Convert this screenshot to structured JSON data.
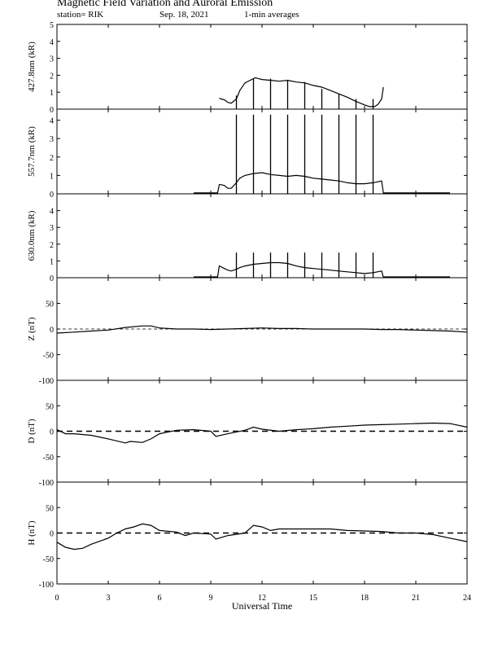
{
  "header": {
    "title": "Magnetic Field Variation and Auroral Emission",
    "station": "station= RIK",
    "date": "Sep. 18, 2021",
    "averaging": "1-min averages"
  },
  "chart_data": [
    {
      "type": "line",
      "ylabel": "427.8nm (kR)",
      "ylim": [
        0,
        5
      ],
      "yticks": [
        0,
        1,
        2,
        3,
        4,
        5
      ],
      "series": [
        {
          "x": [
            9.5,
            9.6,
            9.8,
            10.0,
            10.2,
            10.5,
            10.7,
            11.0,
            11.3,
            11.6,
            11.8,
            12.0,
            12.5,
            13.0,
            13.5,
            14.0,
            14.5,
            15.0,
            15.5,
            16.0,
            16.5,
            17.0,
            17.5,
            18.0,
            18.3,
            18.6,
            18.8,
            19.0,
            19.1
          ],
          "y": [
            0.65,
            0.6,
            0.55,
            0.4,
            0.35,
            0.6,
            1.1,
            1.55,
            1.7,
            1.85,
            1.8,
            1.75,
            1.7,
            1.65,
            1.7,
            1.6,
            1.55,
            1.4,
            1.3,
            1.1,
            0.9,
            0.7,
            0.45,
            0.25,
            0.15,
            0.15,
            0.3,
            0.6,
            1.3
          ]
        }
      ],
      "spikes": [
        {
          "x": 10.5,
          "y": 0.8
        },
        {
          "x": 11.5,
          "y": 1.8
        },
        {
          "x": 12.5,
          "y": 1.8
        },
        {
          "x": 13.5,
          "y": 1.7
        },
        {
          "x": 14.5,
          "y": 1.6
        },
        {
          "x": 15.5,
          "y": 1.2
        },
        {
          "x": 16.5,
          "y": 0.9
        },
        {
          "x": 17.5,
          "y": 0.6
        },
        {
          "x": 18.5,
          "y": 0.6
        }
      ]
    },
    {
      "type": "line",
      "ylabel": "557.7nm (kR)",
      "ylim": [
        0,
        4.6
      ],
      "yticks": [
        0,
        1,
        2,
        3,
        4
      ],
      "series": [
        {
          "x": [
            8.0,
            9.4,
            9.5,
            9.6,
            9.8,
            10.0,
            10.2,
            10.5,
            10.7,
            11.0,
            11.5,
            12.0,
            12.5,
            13.0,
            13.5,
            14.0,
            14.5,
            15.0,
            15.5,
            16.0,
            16.5,
            17.0,
            17.5,
            18.0,
            18.5,
            19.0,
            19.1,
            23.0
          ],
          "y": [
            0.05,
            0.05,
            0.5,
            0.5,
            0.45,
            0.3,
            0.3,
            0.6,
            0.85,
            1.0,
            1.1,
            1.15,
            1.05,
            1.0,
            0.95,
            1.0,
            0.95,
            0.85,
            0.8,
            0.75,
            0.7,
            0.6,
            0.55,
            0.55,
            0.6,
            0.7,
            0.05,
            0.05
          ]
        }
      ],
      "spikes": [
        {
          "x": 10.5,
          "y": 4.3
        },
        {
          "x": 11.5,
          "y": 4.3
        },
        {
          "x": 12.5,
          "y": 4.3
        },
        {
          "x": 13.5,
          "y": 4.3
        },
        {
          "x": 14.5,
          "y": 4.3
        },
        {
          "x": 15.5,
          "y": 4.3
        },
        {
          "x": 16.5,
          "y": 4.3
        },
        {
          "x": 17.5,
          "y": 4.3
        },
        {
          "x": 18.5,
          "y": 4.3
        }
      ]
    },
    {
      "type": "line",
      "ylabel": "630.0nm (kR)",
      "ylim": [
        0,
        5
      ],
      "yticks": [
        0,
        1,
        2,
        3,
        4
      ],
      "series": [
        {
          "x": [
            8.0,
            9.4,
            9.5,
            9.6,
            9.8,
            10.0,
            10.2,
            10.5,
            10.7,
            11.0,
            11.5,
            12.0,
            12.5,
            13.0,
            13.5,
            14.0,
            14.5,
            15.0,
            15.5,
            16.0,
            16.5,
            17.0,
            17.5,
            18.0,
            18.5,
            19.0,
            19.1,
            23.0
          ],
          "y": [
            0.05,
            0.05,
            0.7,
            0.65,
            0.55,
            0.45,
            0.4,
            0.5,
            0.6,
            0.7,
            0.8,
            0.85,
            0.9,
            0.9,
            0.85,
            0.7,
            0.6,
            0.55,
            0.5,
            0.45,
            0.4,
            0.35,
            0.3,
            0.25,
            0.3,
            0.4,
            0.05,
            0.05
          ]
        }
      ],
      "spikes": [
        {
          "x": 10.5,
          "y": 1.5
        },
        {
          "x": 11.5,
          "y": 1.5
        },
        {
          "x": 12.5,
          "y": 1.5
        },
        {
          "x": 13.5,
          "y": 1.5
        },
        {
          "x": 14.5,
          "y": 1.5
        },
        {
          "x": 15.5,
          "y": 1.5
        },
        {
          "x": 16.5,
          "y": 1.5
        },
        {
          "x": 17.5,
          "y": 1.5
        },
        {
          "x": 18.5,
          "y": 1.5
        }
      ]
    },
    {
      "type": "line",
      "ylabel": "Z (nT)",
      "ylim": [
        -100,
        100
      ],
      "yticks": [
        -100,
        -50,
        0,
        50
      ],
      "series": [
        {
          "x": [
            0,
            1,
            2,
            3,
            4,
            5,
            5.5,
            6,
            7,
            8,
            9,
            10,
            11,
            12,
            13,
            14,
            15,
            16,
            17,
            18,
            19,
            20,
            21,
            22,
            23,
            24
          ],
          "y": [
            -8,
            -6,
            -4,
            -2,
            3,
            6,
            6,
            2,
            0,
            0,
            -1,
            0,
            1,
            2,
            1,
            1,
            0,
            0,
            0,
            0,
            -1,
            -1,
            -2,
            -3,
            -4,
            -6
          ]
        }
      ],
      "spikes": []
    },
    {
      "type": "line",
      "ylabel": "D (nT)",
      "ylim": [
        -100,
        100
      ],
      "yticks": [
        -100,
        -50,
        0,
        50
      ],
      "series": [
        {
          "x": [
            0,
            0.5,
            1,
            2,
            3,
            4,
            4.3,
            5,
            5.5,
            6,
            7,
            8,
            9,
            9.3,
            10,
            11,
            11.5,
            12,
            13,
            14,
            15,
            16,
            17,
            18,
            19,
            20,
            21,
            22,
            23,
            24
          ],
          "y": [
            3,
            -5,
            -5,
            -8,
            -15,
            -23,
            -20,
            -22,
            -15,
            -5,
            2,
            3,
            0,
            -10,
            -5,
            2,
            8,
            4,
            0,
            3,
            5,
            8,
            10,
            12,
            13,
            14,
            15,
            16,
            15,
            8
          ]
        }
      ],
      "spikes": []
    },
    {
      "type": "line",
      "ylabel": "H (nT)",
      "ylim": [
        -100,
        100
      ],
      "yticks": [
        -100,
        -50,
        0,
        50
      ],
      "series": [
        {
          "x": [
            0,
            0.5,
            1,
            1.5,
            2,
            3,
            3.5,
            4,
            4.5,
            5,
            5.5,
            6,
            7,
            7.5,
            8,
            9,
            9.3,
            10,
            11,
            11.5,
            12,
            12.5,
            13,
            14,
            15,
            16,
            17,
            18,
            19,
            20,
            21,
            22,
            23,
            24
          ],
          "y": [
            -18,
            -28,
            -32,
            -30,
            -22,
            -10,
            0,
            8,
            12,
            18,
            15,
            5,
            2,
            -5,
            0,
            -2,
            -12,
            -5,
            0,
            15,
            12,
            5,
            8,
            8,
            8,
            8,
            5,
            4,
            3,
            0,
            0,
            -3,
            -10,
            -17
          ]
        }
      ],
      "spikes": []
    }
  ],
  "xaxis": {
    "label": "Universal Time",
    "xlim": [
      0,
      24
    ],
    "ticks": [
      0,
      3,
      6,
      9,
      12,
      15,
      18,
      21,
      24
    ]
  }
}
